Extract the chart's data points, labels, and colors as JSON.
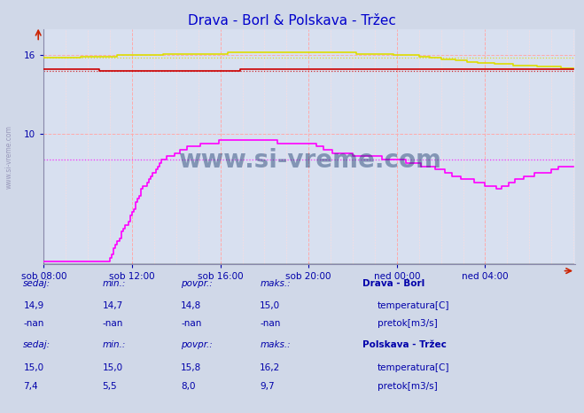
{
  "title": "Drava - Borl & Polskava - Tržec",
  "title_color": "#0000cc",
  "bg_color": "#d0d8e8",
  "plot_bg_color": "#d8e0f0",
  "xlabel_ticks": [
    "sob 08:00",
    "sob 12:00",
    "sob 16:00",
    "sob 20:00",
    "ned 00:00",
    "ned 04:00"
  ],
  "tick_positions": [
    0,
    48,
    96,
    144,
    192,
    240
  ],
  "yticks": [
    10,
    16
  ],
  "ylim": [
    0,
    18
  ],
  "xlim": [
    0,
    289
  ],
  "watermark": "www.si-vreme.com",
  "drava_temp_color": "#cc0000",
  "drava_temp_mean": 14.8,
  "polskava_temp_color": "#dddd00",
  "polskava_temp_mean": 15.8,
  "polskava_flow_color": "#ff00ff",
  "polskava_flow_mean": 8.0,
  "drava_black_color": "#000000",
  "stats": {
    "drava_title": "Drava - Borl",
    "polskava_title": "Polskava - Tržec",
    "headers": [
      "sedaj:",
      "min.:",
      "povpr.:",
      "maks.:"
    ],
    "drava_temp_vals": [
      "14,9",
      "14,7",
      "14,8",
      "15,0"
    ],
    "drava_flow_vals": [
      "-nan",
      "-nan",
      "-nan",
      "-nan"
    ],
    "polskava_temp_vals": [
      "15,0",
      "15,0",
      "15,8",
      "16,2"
    ],
    "polskava_flow_vals": [
      "7,4",
      "5,5",
      "8,0",
      "9,7"
    ],
    "label_temp": "temperatura[C]",
    "label_flow": "pretok[m3/s]",
    "drava_temp_swatch": "#cc0000",
    "drava_flow_swatch": "#00cc00",
    "polskava_temp_swatch": "#dddd00",
    "polskava_flow_swatch": "#ff00ff"
  }
}
